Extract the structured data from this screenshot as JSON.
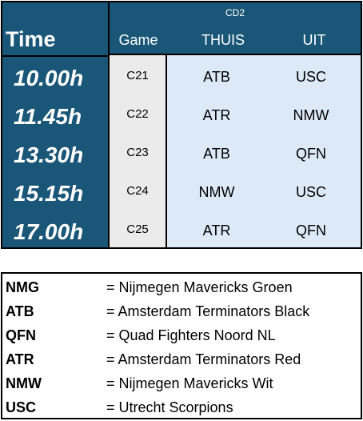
{
  "schedule": {
    "division": "CD2",
    "time_header": "Time",
    "game_header": "Game",
    "home_header": "THUIS",
    "away_header": "UIT",
    "rows": [
      {
        "time": "10.00h",
        "game": "C21",
        "home": "ATB",
        "away": "USC"
      },
      {
        "time": "11.45h",
        "game": "C22",
        "home": "ATR",
        "away": "NMW"
      },
      {
        "time": "13.30h",
        "game": "C23",
        "home": "ATB",
        "away": "QFN"
      },
      {
        "time": "15.15h",
        "game": "C24",
        "home": "NMW",
        "away": "USC"
      },
      {
        "time": "17.00h",
        "game": "C25",
        "home": "ATR",
        "away": "QFN"
      }
    ]
  },
  "legend": {
    "items": [
      {
        "code": "NMG",
        "desc": "= Nijmegen Mavericks Groen"
      },
      {
        "code": "ATB",
        "desc": "= Amsterdam Terminators Black"
      },
      {
        "code": "QFN",
        "desc": "= Quad Fighters Noord NL"
      },
      {
        "code": "ATR",
        "desc": "= Amsterdam Terminators Red"
      },
      {
        "code": "NMW",
        "desc": "= Nijmegen Mavericks Wit"
      },
      {
        "code": "USC",
        "desc": "= Utrecht Scorpions"
      }
    ]
  },
  "colors": {
    "header_blue": "#1a5678",
    "game_gray": "#ebebeb",
    "body_light_blue": "#dce9f6"
  }
}
